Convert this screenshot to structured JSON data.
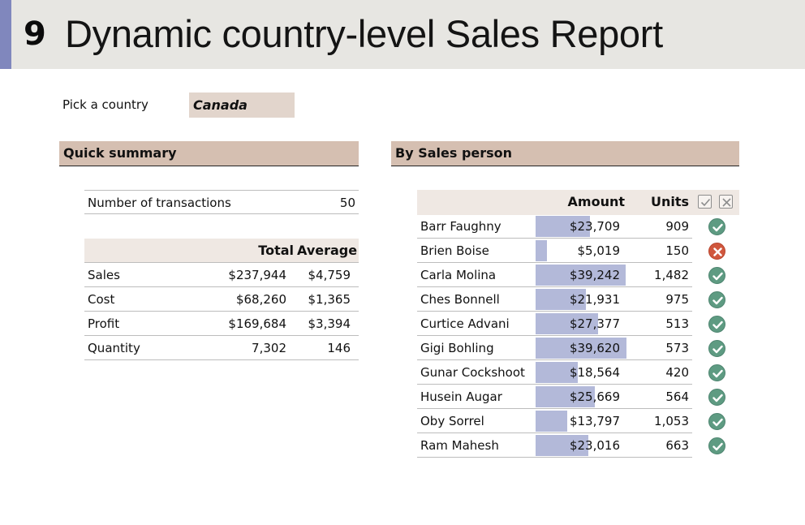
{
  "header": {
    "number": "9",
    "title": "Dynamic country-level Sales Report"
  },
  "picker": {
    "label": "Pick a country",
    "value": "Canada"
  },
  "quick_summary": {
    "heading": "Quick summary",
    "transactions": {
      "label": "Number of transactions",
      "value": "50"
    },
    "columns": {
      "total": "Total",
      "average": "Average"
    },
    "rows": [
      {
        "label": "Sales",
        "total": "$237,944",
        "average": "$4,759"
      },
      {
        "label": "Cost",
        "total": "$68,260",
        "average": "$1,365"
      },
      {
        "label": "Profit",
        "total": "$169,684",
        "average": "$3,394"
      },
      {
        "label": "Quantity",
        "total": "7,302",
        "average": "146"
      }
    ]
  },
  "by_sales_person": {
    "heading": "By Sales person",
    "columns": {
      "amount": "Amount",
      "units": "Units"
    },
    "colors": {
      "bar": "#b3b9d9",
      "ok": "#5e9b82",
      "bad": "#d0573d"
    },
    "rows": [
      {
        "name": "Barr Faughny",
        "amount": "$23,709",
        "amount_value": 23709,
        "units": "909",
        "status": "ok"
      },
      {
        "name": "Brien Boise",
        "amount": "$5,019",
        "amount_value": 5019,
        "units": "150",
        "status": "bad"
      },
      {
        "name": "Carla Molina",
        "amount": "$39,242",
        "amount_value": 39242,
        "units": "1,482",
        "status": "ok"
      },
      {
        "name": "Ches Bonnell",
        "amount": "$21,931",
        "amount_value": 21931,
        "units": "975",
        "status": "ok"
      },
      {
        "name": "Curtice Advani",
        "amount": "$27,377",
        "amount_value": 27377,
        "units": "513",
        "status": "ok"
      },
      {
        "name": "Gigi Bohling",
        "amount": "$39,620",
        "amount_value": 39620,
        "units": "573",
        "status": "ok"
      },
      {
        "name": "Gunar Cockshoot",
        "amount": "$18,564",
        "amount_value": 18564,
        "units": "420",
        "status": "ok"
      },
      {
        "name": "Husein Augar",
        "amount": "$25,669",
        "amount_value": 25669,
        "units": "564",
        "status": "ok"
      },
      {
        "name": "Oby Sorrel",
        "amount": "$13,797",
        "amount_value": 13797,
        "units": "1,053",
        "status": "ok"
      },
      {
        "name": "Ram Mahesh",
        "amount": "$23,016",
        "amount_value": 23016,
        "units": "663",
        "status": "ok"
      }
    ]
  }
}
